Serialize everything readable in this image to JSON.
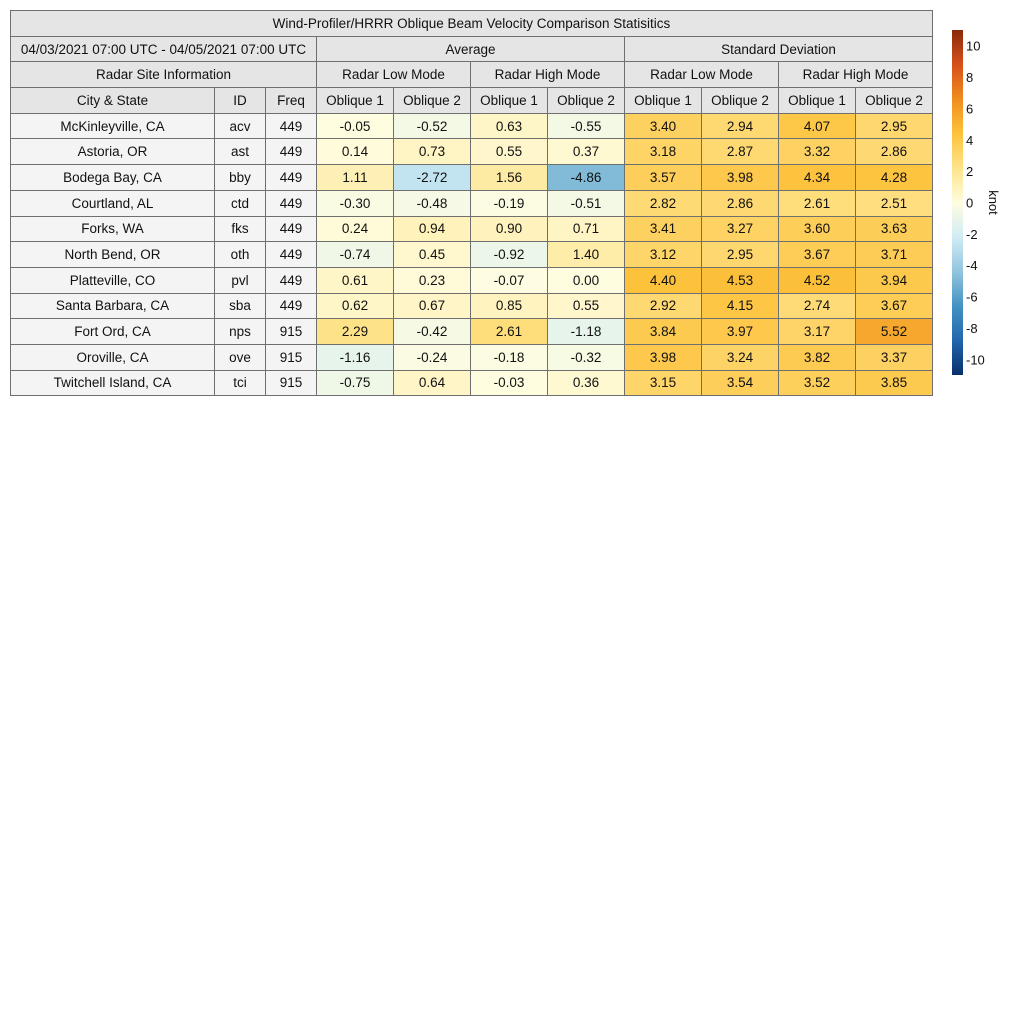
{
  "title": "Wind-Profiler/HRRR Oblique Beam Velocity Comparison Statisitics",
  "date_range": "04/03/2021 07:00 UTC - 04/05/2021 07:00 UTC",
  "groups": {
    "average": "Average",
    "std": "Standard Deviation"
  },
  "site_info_label": "Radar Site Information",
  "modes": {
    "low": "Radar Low Mode",
    "high": "Radar High Mode"
  },
  "columns": {
    "city": "City & State",
    "id": "ID",
    "freq": "Freq",
    "ob1": "Oblique 1",
    "ob2": "Oblique 2"
  },
  "sites": [
    {
      "city": "McKinleyville, CA",
      "id": "acv",
      "freq": "449"
    },
    {
      "city": "Astoria, OR",
      "id": "ast",
      "freq": "449"
    },
    {
      "city": "Bodega Bay, CA",
      "id": "bby",
      "freq": "449"
    },
    {
      "city": "Courtland, AL",
      "id": "ctd",
      "freq": "449"
    },
    {
      "city": "Forks, WA",
      "id": "fks",
      "freq": "449"
    },
    {
      "city": "North Bend, OR",
      "id": "oth",
      "freq": "449"
    },
    {
      "city": "Platteville, CO",
      "id": "pvl",
      "freq": "449"
    },
    {
      "city": "Santa Barbara, CA",
      "id": "sba",
      "freq": "449"
    },
    {
      "city": "Fort Ord, CA",
      "id": "nps",
      "freq": "915"
    },
    {
      "city": "Oroville, CA",
      "id": "ove",
      "freq": "915"
    },
    {
      "city": "Twitchell Island, CA",
      "id": "tci",
      "freq": "915"
    }
  ],
  "chart_data": {
    "type": "heatmap",
    "title": "Wind-Profiler/HRRR Oblique Beam Velocity Comparison Statisitics",
    "column_groups": [
      {
        "name": "Average",
        "modes": [
          "Radar Low Mode",
          "Radar High Mode"
        ]
      },
      {
        "name": "Standard Deviation",
        "modes": [
          "Radar Low Mode",
          "Radar High Mode"
        ]
      }
    ],
    "columns": [
      "Oblique 1",
      "Oblique 2",
      "Oblique 1",
      "Oblique 2",
      "Oblique 1",
      "Oblique 2",
      "Oblique 1",
      "Oblique 2"
    ],
    "rows": [
      "acv",
      "ast",
      "bby",
      "ctd",
      "fks",
      "oth",
      "pvl",
      "sba",
      "nps",
      "ove",
      "tci"
    ],
    "values": [
      [
        "-0.05",
        "-0.52",
        "0.63",
        "-0.55",
        "3.40",
        "2.94",
        "4.07",
        "2.95"
      ],
      [
        "0.14",
        "0.73",
        "0.55",
        "0.37",
        "3.18",
        "2.87",
        "3.32",
        "2.86"
      ],
      [
        "1.11",
        "-2.72",
        "1.56",
        "-4.86",
        "3.57",
        "3.98",
        "4.34",
        "4.28"
      ],
      [
        "-0.30",
        "-0.48",
        "-0.19",
        "-0.51",
        "2.82",
        "2.86",
        "2.61",
        "2.51"
      ],
      [
        "0.24",
        "0.94",
        "0.90",
        "0.71",
        "3.41",
        "3.27",
        "3.60",
        "3.63"
      ],
      [
        "-0.74",
        "0.45",
        "-0.92",
        "1.40",
        "3.12",
        "2.95",
        "3.67",
        "3.71"
      ],
      [
        "0.61",
        "0.23",
        "-0.07",
        "0.00",
        "4.40",
        "4.53",
        "4.52",
        "3.94"
      ],
      [
        "0.62",
        "0.67",
        "0.85",
        "0.55",
        "2.92",
        "4.15",
        "2.74",
        "3.67"
      ],
      [
        "2.29",
        "-0.42",
        "2.61",
        "-1.18",
        "3.84",
        "3.97",
        "3.17",
        "5.52"
      ],
      [
        "-1.16",
        "-0.24",
        "-0.18",
        "-0.32",
        "3.98",
        "3.24",
        "3.82",
        "3.37"
      ],
      [
        "-0.75",
        "0.64",
        "-0.03",
        "0.36",
        "3.15",
        "3.54",
        "3.52",
        "3.85"
      ]
    ],
    "colorbar": {
      "label": "knot",
      "range": [
        -11,
        11
      ],
      "ticks": [
        -10,
        -8,
        -6,
        -4,
        -2,
        0,
        2,
        4,
        6,
        8,
        10
      ],
      "colors": [
        "#08306b",
        "#2166ac",
        "#4393c3",
        "#92c5de",
        "#d1ecf5",
        "#fffde0",
        "#fee38a",
        "#fdc23c",
        "#f08c1e",
        "#d6501a",
        "#8a2a0a"
      ]
    }
  }
}
